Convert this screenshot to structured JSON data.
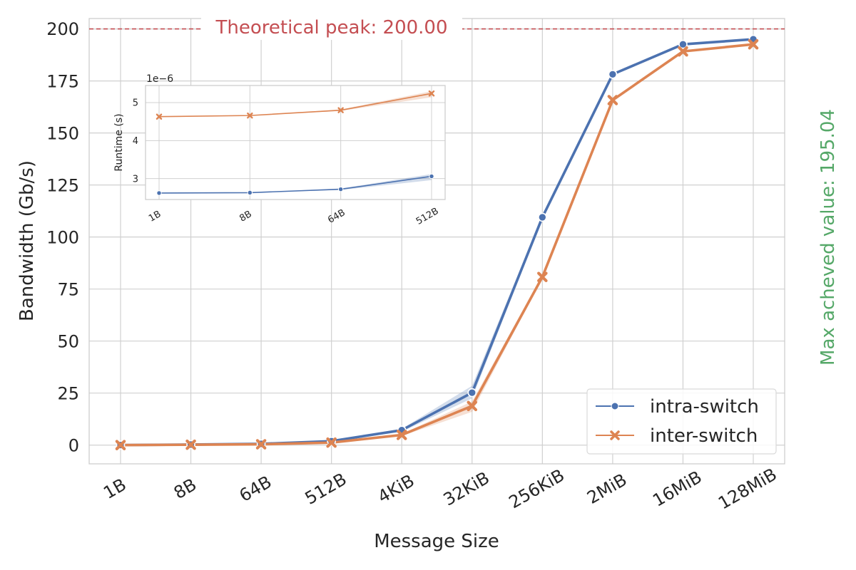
{
  "chart_data": {
    "type": "line",
    "xlabel": "Message Size",
    "ylabel": "Bandwidth (Gb/s)",
    "categories": [
      "1B",
      "8B",
      "64B",
      "512B",
      "4KiB",
      "32KiB",
      "256KiB",
      "2MiB",
      "16MiB",
      "128MiB"
    ],
    "ylim": [
      -9,
      205
    ],
    "yticks": [
      "0",
      "25",
      "50",
      "75",
      "100",
      "125",
      "150",
      "175",
      "200"
    ],
    "grid": true,
    "legend_position": "bottom-right",
    "series": [
      {
        "name": "intra-switch",
        "color": "#4c72b0",
        "marker": "circle",
        "values": [
          0.03,
          0.25,
          0.6,
          1.9,
          7.2,
          25.2,
          109.5,
          178.2,
          192.6,
          195.04
        ],
        "band_low": [
          0.03,
          0.25,
          0.6,
          1.7,
          6.4,
          22.5,
          108.5,
          177.8,
          192.3,
          194.8
        ],
        "band_high": [
          0.03,
          0.25,
          0.6,
          2.1,
          7.8,
          28.5,
          110.3,
          178.6,
          192.9,
          195.3
        ]
      },
      {
        "name": "inter-switch",
        "color": "#dd8452",
        "marker": "x",
        "values": [
          0.02,
          0.18,
          0.4,
          1.2,
          4.9,
          18.8,
          80.8,
          165.8,
          189.2,
          192.6
        ],
        "band_low": [
          0.02,
          0.18,
          0.4,
          1.0,
          4.4,
          16.0,
          80.0,
          165.3,
          188.9,
          192.3
        ],
        "band_high": [
          0.02,
          0.18,
          0.4,
          1.4,
          5.4,
          21.0,
          81.6,
          166.2,
          189.5,
          192.9
        ]
      }
    ],
    "peak_line": {
      "value": 200,
      "label": "Theoretical peak: 200.00",
      "color": "#c44e52"
    },
    "side_label": {
      "text": "Max acheved value: 195.04",
      "color": "#55a868"
    },
    "inset": {
      "type": "line",
      "ylabel": "Runtime (s)",
      "categories": [
        "1B",
        "8B",
        "64B",
        "512B"
      ],
      "ylim": [
        2.45,
        5.45
      ],
      "yticks": [
        "3",
        "4",
        "5"
      ],
      "offset_label": "1e−6",
      "series": [
        {
          "name": "intra-switch",
          "color": "#4c72b0",
          "values": [
            2.62,
            2.63,
            2.72,
            3.06
          ],
          "band_low": [
            2.62,
            2.63,
            2.7,
            2.96
          ],
          "band_high": [
            2.62,
            2.63,
            2.74,
            3.12
          ]
        },
        {
          "name": "inter-switch",
          "color": "#dd8452",
          "values": [
            4.63,
            4.66,
            4.8,
            5.24
          ],
          "band_low": [
            4.63,
            4.66,
            4.78,
            5.14
          ],
          "band_high": [
            4.63,
            4.66,
            4.82,
            5.3
          ]
        }
      ]
    }
  }
}
